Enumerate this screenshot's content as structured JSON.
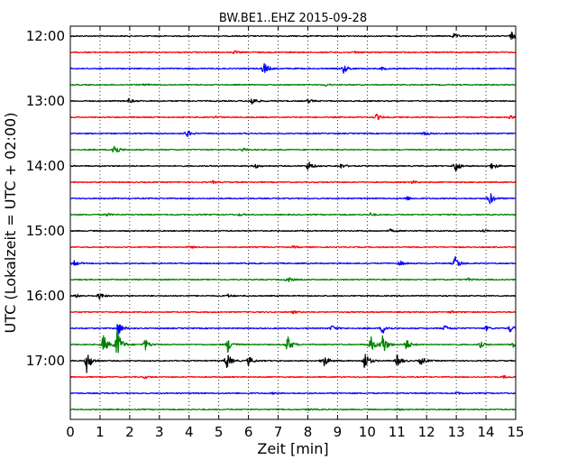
{
  "chart_data": {
    "type": "line",
    "title": "BW.BE1..EHZ 2015-09-28",
    "xlabel": "Zeit  [min]",
    "ylabel": "UTC (Lokalzeit = UTC + 02:00)",
    "xlim": [
      0,
      15
    ],
    "x_ticks": [
      "0",
      "1",
      "2",
      "3",
      "4",
      "5",
      "6",
      "7",
      "8",
      "9",
      "10",
      "11",
      "12",
      "13",
      "14",
      "15"
    ],
    "y_ticks": [
      {
        "label": "12:00",
        "trace_index": 0
      },
      {
        "label": "13:00",
        "trace_index": 4
      },
      {
        "label": "14:00",
        "trace_index": 8
      },
      {
        "label": "15:00",
        "trace_index": 12
      },
      {
        "label": "16:00",
        "trace_index": 16
      },
      {
        "label": "17:00",
        "trace_index": 20
      }
    ],
    "grid": "vertical dotted lines at each minute",
    "trace_interval_min": 15,
    "trace_colors": [
      "#000000",
      "#ff0000",
      "#0000ff",
      "#008000"
    ],
    "traces": [
      {
        "start": "12:00",
        "events": [
          [
            12.9,
            0.3
          ],
          [
            14.85,
            0.5
          ]
        ]
      },
      {
        "start": "12:15",
        "events": [
          [
            5.5,
            0.2
          ],
          [
            9.6,
            0.15
          ]
        ]
      },
      {
        "start": "12:30",
        "events": [
          [
            6.5,
            0.9
          ],
          [
            9.2,
            0.6
          ],
          [
            10.5,
            0.2
          ]
        ]
      },
      {
        "start": "12:45",
        "events": [
          [
            2.5,
            0.15
          ],
          [
            8.6,
            0.15
          ]
        ]
      },
      {
        "start": "13:00",
        "events": [
          [
            1.95,
            0.3
          ],
          [
            6.1,
            0.6
          ],
          [
            8.0,
            0.25
          ]
        ]
      },
      {
        "start": "13:15",
        "events": [
          [
            4.9,
            0.15
          ],
          [
            10.3,
            0.4
          ],
          [
            14.8,
            0.2
          ]
        ]
      },
      {
        "start": "13:30",
        "events": [
          [
            3.9,
            0.5
          ],
          [
            11.9,
            0.3
          ]
        ]
      },
      {
        "start": "13:45",
        "events": [
          [
            1.45,
            1.0
          ],
          [
            5.8,
            0.2
          ]
        ]
      },
      {
        "start": "14:00",
        "events": [
          [
            6.2,
            0.3
          ],
          [
            8.0,
            0.7
          ],
          [
            9.1,
            0.3
          ],
          [
            12.95,
            0.9
          ],
          [
            14.2,
            0.5
          ]
        ]
      },
      {
        "start": "14:15",
        "events": [
          [
            4.8,
            0.15
          ],
          [
            11.5,
            0.2
          ]
        ]
      },
      {
        "start": "14:30",
        "events": [
          [
            11.3,
            0.3
          ],
          [
            14.1,
            1.0
          ]
        ]
      },
      {
        "start": "14:45",
        "events": [
          [
            1.2,
            0.2
          ],
          [
            5.7,
            0.15
          ],
          [
            10.1,
            0.2
          ]
        ]
      },
      {
        "start": "15:00",
        "events": [
          [
            10.75,
            0.2
          ],
          [
            13.9,
            0.15
          ]
        ]
      },
      {
        "start": "15:15",
        "events": [
          [
            4.0,
            0.15
          ],
          [
            7.5,
            0.15
          ]
        ]
      },
      {
        "start": "15:30",
        "events": [
          [
            0.1,
            0.4
          ],
          [
            11.1,
            0.3
          ],
          [
            12.95,
            1.0
          ]
        ]
      },
      {
        "start": "15:45",
        "events": [
          [
            7.3,
            0.45
          ],
          [
            13.4,
            0.15
          ]
        ]
      },
      {
        "start": "16:00",
        "events": [
          [
            0.2,
            0.2
          ],
          [
            0.95,
            0.5
          ],
          [
            5.3,
            0.2
          ]
        ]
      },
      {
        "start": "16:15",
        "events": [
          [
            7.5,
            0.15
          ],
          [
            12.8,
            0.15
          ]
        ]
      },
      {
        "start": "16:30",
        "events": [
          [
            1.6,
            1.0
          ],
          [
            8.8,
            0.4
          ],
          [
            10.5,
            0.8
          ],
          [
            12.6,
            0.4
          ],
          [
            14.0,
            0.3
          ],
          [
            14.8,
            0.5
          ]
        ]
      },
      {
        "start": "16:45",
        "events": [
          [
            1.1,
            1.4
          ],
          [
            1.55,
            2.4
          ],
          [
            2.5,
            0.8
          ],
          [
            5.3,
            1.0
          ],
          [
            7.3,
            1.2
          ],
          [
            10.1,
            1.2
          ],
          [
            10.5,
            1.6
          ],
          [
            11.3,
            0.8
          ],
          [
            13.8,
            0.4
          ],
          [
            14.9,
            0.5
          ]
        ]
      },
      {
        "start": "17:00",
        "events": [
          [
            0.55,
            1.5
          ],
          [
            5.25,
            1.2
          ],
          [
            6.0,
            0.6
          ],
          [
            8.5,
            1.0
          ],
          [
            9.9,
            1.3
          ],
          [
            11.0,
            0.8
          ],
          [
            11.8,
            0.6
          ]
        ]
      },
      {
        "start": "17:15",
        "events": [
          [
            2.5,
            0.15
          ],
          [
            14.6,
            0.15
          ]
        ]
      },
      {
        "start": "17:30",
        "events": [
          [
            6.8,
            0.1
          ],
          [
            13.0,
            0.15
          ]
        ]
      },
      {
        "start": "17:45",
        "events": [
          [
            8.0,
            0.1
          ],
          [
            11.0,
            0.1
          ]
        ]
      }
    ]
  }
}
